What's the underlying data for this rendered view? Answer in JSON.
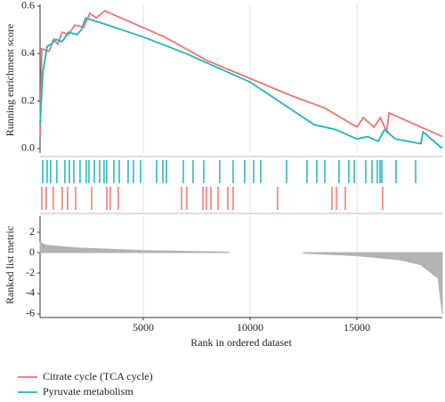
{
  "chart_data": [
    {
      "type": "line",
      "ylabel": "Running enrichment score",
      "xlim": [
        170,
        19000
      ],
      "ylim": [
        -0.019,
        0.607
      ],
      "yticks": [
        {
          "value": 0,
          "label": "0.0"
        },
        {
          "value": 0.2,
          "label": "0.2"
        },
        {
          "value": 0.4,
          "label": "0.4"
        },
        {
          "value": 0.6,
          "label": "0.6"
        }
      ],
      "series": [
        {
          "name": "Citrate cycle (TCA cycle)",
          "color": "#f07470",
          "x": [
            170,
            250,
            600,
            800,
            1000,
            1200,
            1500,
            1800,
            2200,
            2500,
            2800,
            3200,
            6000,
            8000,
            12000,
            13500,
            15000,
            15300,
            15800,
            16100,
            16400,
            16500,
            18000,
            19000
          ],
          "values": [
            0.05,
            0.42,
            0.41,
            0.46,
            0.44,
            0.49,
            0.48,
            0.52,
            0.51,
            0.57,
            0.55,
            0.58,
            0.47,
            0.37,
            0.22,
            0.17,
            0.09,
            0.13,
            0.09,
            0.13,
            0.07,
            0.15,
            0.09,
            0.05
          ]
        },
        {
          "name": "Pyruvate metabolism",
          "color": "#1fb5b8",
          "x": [
            170,
            300,
            500,
            700,
            900,
            1200,
            1500,
            1900,
            2100,
            2300,
            3000,
            5000,
            7000,
            8000,
            10000,
            13000,
            14000,
            14500,
            15000,
            15500,
            16000,
            16300,
            16800,
            18000,
            18100,
            19000
          ],
          "values": [
            0.1,
            0.32,
            0.43,
            0.44,
            0.46,
            0.45,
            0.49,
            0.48,
            0.5,
            0.55,
            0.53,
            0.47,
            0.4,
            0.36,
            0.28,
            0.1,
            0.08,
            0.06,
            0.04,
            0.05,
            0.03,
            0.08,
            0.04,
            0.02,
            0.07,
            0.0
          ]
        }
      ]
    },
    {
      "type": "rug",
      "xlim": [
        170,
        19000
      ],
      "series": [
        {
          "color": "#1fb5b8",
          "x": [
            292,
            500,
            667,
            958,
            1333,
            1542,
            1750,
            2042,
            2333,
            2458,
            2708,
            2958,
            3167,
            3292,
            3625,
            3875,
            4292,
            4542,
            4875,
            5625,
            5917,
            6083,
            6875,
            7333,
            7833,
            8583,
            9208,
            9750,
            10167,
            10500,
            11708,
            12667,
            13125,
            13500,
            14167,
            14625,
            14875,
            15417,
            15708,
            15958,
            16083,
            16167,
            16833,
            17750
          ]
        },
        {
          "color": "#f07470",
          "x": [
            250,
            458,
            792,
            1208,
            1458,
            1833,
            2583,
            3292,
            3458,
            3833,
            6792,
            7042,
            7792,
            7958,
            8167,
            8500,
            8958,
            9208,
            11292,
            13833,
            14042,
            14458,
            16208
          ]
        }
      ]
    },
    {
      "type": "area",
      "ylabel": "Ranked list metric",
      "xlabel": "Rank in ordered dataset",
      "color": "#b3b3b3",
      "xlim": [
        170,
        19000
      ],
      "ylim": [
        -6.35,
        3.57
      ],
      "xticks": [
        5000,
        10000,
        15000
      ],
      "yticks": [
        -6,
        -4,
        -2,
        0,
        2
      ],
      "x": [
        170,
        500,
        2000,
        5000,
        9000,
        10000,
        12500,
        15000,
        17000,
        18000,
        18800,
        19000
      ],
      "values": [
        1.0,
        0.7,
        0.45,
        0.2,
        0.05,
        null,
        -0.05,
        -0.3,
        -0.7,
        -1.2,
        -2.5,
        -6.0
      ]
    }
  ]
}
